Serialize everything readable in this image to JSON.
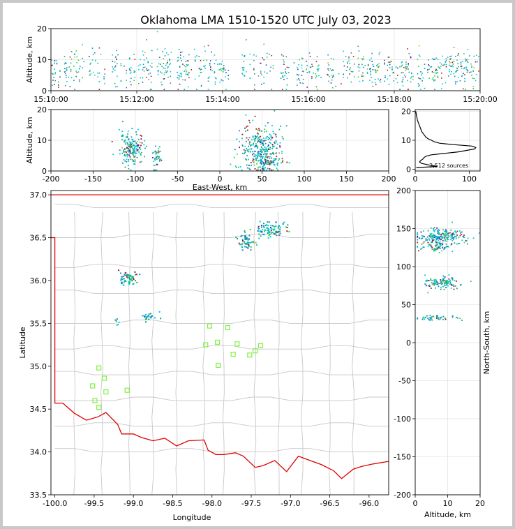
{
  "title": "Oklahoma LMA 1510-1520 UTC July 03, 2023",
  "chart_data": [
    {
      "type": "scatter",
      "panel": "altitude-time",
      "ylabel": "Altitude, km",
      "xlabel": "",
      "ylim": [
        0,
        20
      ],
      "yticks": [
        "0",
        "10",
        "20"
      ],
      "xticks": [
        "15:10:00",
        "15:12:00",
        "15:14:00",
        "15:16:00",
        "15:18:00",
        "15:20:00"
      ],
      "x_range_minutes": [
        0,
        10
      ],
      "grid": true
    },
    {
      "type": "scatter",
      "panel": "east-west-altitude",
      "xlabel": "East-West, km",
      "ylabel": "Altitude, km",
      "xlim": [
        -200,
        200
      ],
      "ylim": [
        0,
        20
      ],
      "xticks": [
        "-200",
        "-150",
        "-100",
        "-50",
        "0",
        "50",
        "100",
        "150",
        "200"
      ],
      "yticks": [
        "0",
        "10",
        "20"
      ],
      "grid": true
    },
    {
      "type": "line",
      "panel": "altitude-histogram",
      "xlim": [
        0,
        120
      ],
      "ylim": [
        0,
        20
      ],
      "xticks": [
        "0",
        "100"
      ],
      "yticks": [
        "0",
        "10",
        "20"
      ],
      "annotation": "3,512 sources",
      "profile": [
        {
          "alt": 0.5,
          "count": 2
        },
        {
          "alt": 1,
          "count": 40
        },
        {
          "alt": 1.5,
          "count": 25
        },
        {
          "alt": 2,
          "count": 12
        },
        {
          "alt": 2.5,
          "count": 8
        },
        {
          "alt": 3,
          "count": 10
        },
        {
          "alt": 3.5,
          "count": 14
        },
        {
          "alt": 4,
          "count": 16
        },
        {
          "alt": 4.5,
          "count": 20
        },
        {
          "alt": 5,
          "count": 30
        },
        {
          "alt": 5.5,
          "count": 55
        },
        {
          "alt": 6,
          "count": 80
        },
        {
          "alt": 6.5,
          "count": 95
        },
        {
          "alt": 7,
          "count": 110
        },
        {
          "alt": 7.5,
          "count": 112
        },
        {
          "alt": 8,
          "count": 105
        },
        {
          "alt": 8.5,
          "count": 70
        },
        {
          "alt": 9,
          "count": 45
        },
        {
          "alt": 9.5,
          "count": 35
        },
        {
          "alt": 10,
          "count": 30
        },
        {
          "alt": 10.5,
          "count": 24
        },
        {
          "alt": 11,
          "count": 20
        },
        {
          "alt": 12,
          "count": 16
        },
        {
          "alt": 13,
          "count": 12
        },
        {
          "alt": 14,
          "count": 10
        },
        {
          "alt": 15,
          "count": 8
        },
        {
          "alt": 16,
          "count": 6
        },
        {
          "alt": 17,
          "count": 4
        },
        {
          "alt": 18,
          "count": 3
        },
        {
          "alt": 19,
          "count": 2
        },
        {
          "alt": 20,
          "count": 1
        }
      ]
    },
    {
      "type": "scatter",
      "panel": "plan-view-map",
      "xlabel": "Longitude",
      "ylabel": "Latitude",
      "xlim": [
        -100.05,
        -95.75
      ],
      "ylim": [
        33.5,
        37.05
      ],
      "xticks": [
        "-100.0",
        "-99.5",
        "-99.0",
        "-98.5",
        "-98.0",
        "-97.5",
        "-97.0",
        "-96.5",
        "-96.0"
      ],
      "yticks": [
        "33.5",
        "34.0",
        "34.5",
        "35.0",
        "35.5",
        "36.0",
        "36.5",
        "37.0"
      ],
      "stations": [
        {
          "lon": -98.03,
          "lat": 35.47
        },
        {
          "lon": -97.8,
          "lat": 35.45
        },
        {
          "lon": -98.08,
          "lat": 35.25
        },
        {
          "lon": -97.93,
          "lat": 35.28
        },
        {
          "lon": -97.68,
          "lat": 35.26
        },
        {
          "lon": -97.73,
          "lat": 35.14
        },
        {
          "lon": -97.52,
          "lat": 35.13
        },
        {
          "lon": -97.45,
          "lat": 35.18
        },
        {
          "lon": -97.38,
          "lat": 35.24
        },
        {
          "lon": -97.92,
          "lat": 35.01
        },
        {
          "lon": -99.44,
          "lat": 34.98
        },
        {
          "lon": -99.37,
          "lat": 34.86
        },
        {
          "lon": -99.52,
          "lat": 34.77
        },
        {
          "lon": -99.35,
          "lat": 34.7
        },
        {
          "lon": -99.08,
          "lat": 34.72
        },
        {
          "lon": -99.49,
          "lat": 34.6
        },
        {
          "lon": -99.44,
          "lat": 34.52
        }
      ],
      "source_clusters": [
        {
          "lon": -97.25,
          "lat": 36.6,
          "slon": 0.1,
          "slat": 0.05,
          "n": 90
        },
        {
          "lon": -97.57,
          "lat": 36.46,
          "slon": 0.05,
          "slat": 0.05,
          "n": 55
        },
        {
          "lon": -99.07,
          "lat": 36.02,
          "slon": 0.06,
          "slat": 0.05,
          "n": 60
        },
        {
          "lon": -98.8,
          "lat": 35.59,
          "slon": 0.05,
          "slat": 0.03,
          "n": 25
        },
        {
          "lon": -99.22,
          "lat": 35.53,
          "slon": 0.02,
          "slat": 0.03,
          "n": 6
        }
      ]
    },
    {
      "type": "scatter",
      "panel": "north-south-altitude",
      "xlabel": "Altitude, km",
      "ylabel": "North-South, km",
      "xlim": [
        0,
        20
      ],
      "ylim": [
        -200,
        200
      ],
      "xticks": [
        "0",
        "10",
        "20"
      ],
      "yticks": [
        "-200",
        "-150",
        "-100",
        "-50",
        "0",
        "50",
        "100",
        "150",
        "200"
      ],
      "grid": true
    }
  ]
}
